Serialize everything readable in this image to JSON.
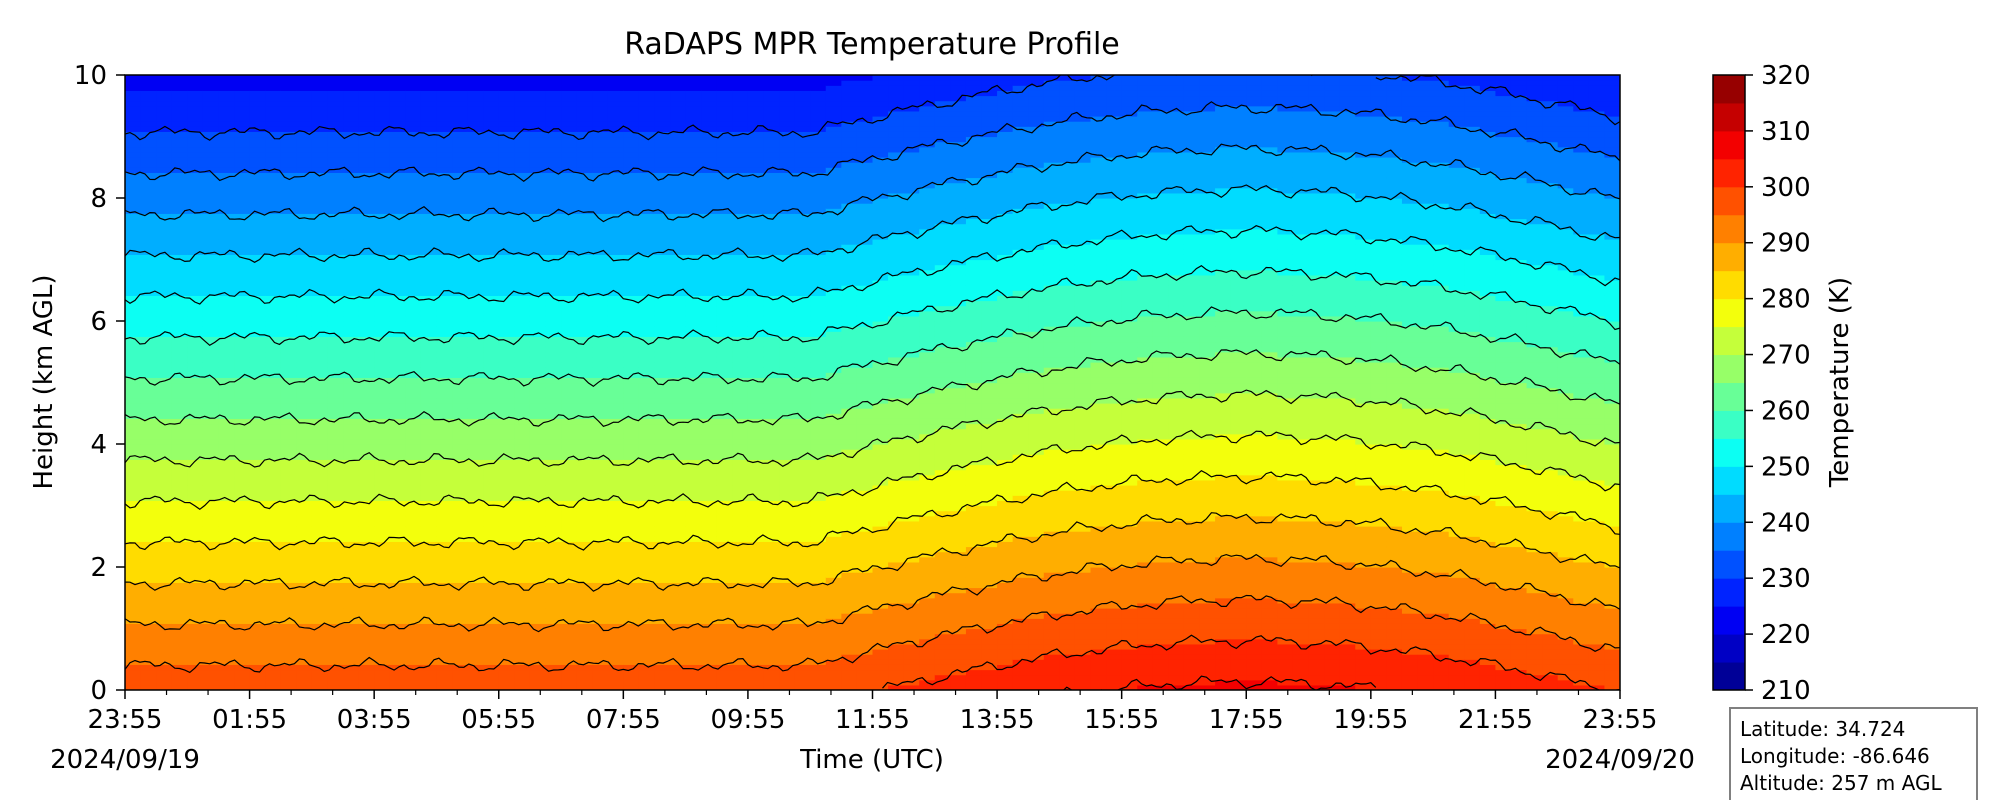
{
  "chart_data": {
    "type": "heatmap",
    "title": "RaDAPS MPR Temperature Profile",
    "xlabel": "Time (UTC)",
    "ylabel": "Height (km AGL)",
    "colorbar_label": "Temperature (K)",
    "x_tick_labels": [
      "23:55",
      "01:55",
      "03:55",
      "05:55",
      "07:55",
      "09:55",
      "11:55",
      "13:55",
      "15:55",
      "17:55",
      "19:55",
      "21:55",
      "23:55"
    ],
    "x_minor_ticks_per_interval": 2,
    "date_start": "2024/09/19",
    "date_end": "2024/09/20",
    "time_range_hours": [
      0,
      24
    ],
    "y_ticks": [
      0,
      2,
      4,
      6,
      8,
      10
    ],
    "ylim": [
      0,
      10
    ],
    "colorbar_ticks": [
      210,
      220,
      230,
      240,
      250,
      260,
      270,
      280,
      290,
      300,
      310,
      320
    ],
    "clim": [
      210,
      320
    ],
    "contour_step": 5,
    "surface_temperature_range": [
      298,
      306
    ],
    "lapse_rate_K_per_km": 7.5,
    "top_temperature_approx": 230,
    "colormap": "jet",
    "info_box": {
      "latitude": "Latitude: 34.724",
      "longitude": "Longitude: -86.646",
      "altitude": "Altitude: 257 m AGL"
    }
  }
}
